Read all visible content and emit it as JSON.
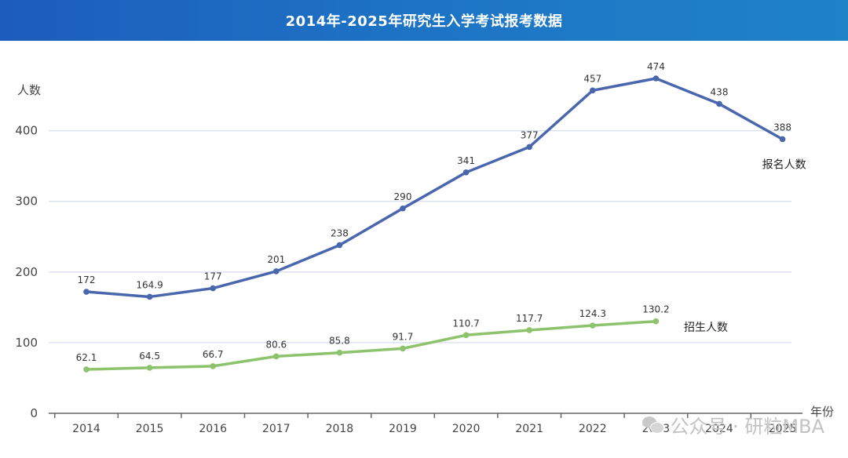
{
  "header": {
    "title": "2014年-2025年研究生入学考试报考数据"
  },
  "watermark": {
    "icon": "wechat-icon",
    "text": "公众号 · 研粒MBA"
  },
  "colors": {
    "title_bar": "#1d6cc2",
    "series_registration": "#4a67ae",
    "series_enrollment": "#8cc36c",
    "grid": "#dde3ee",
    "axis": "#666666"
  },
  "chart_data": {
    "type": "line",
    "title": "2014年-2025年研究生入学考试报考数据",
    "xlabel": "年份",
    "ylabel": "人数",
    "categories": [
      "2014",
      "2015",
      "2016",
      "2017",
      "2018",
      "2019",
      "2020",
      "2021",
      "2022",
      "2023",
      "2024",
      "2025"
    ],
    "ylim": [
      0,
      474
    ],
    "yticks": [
      0,
      100,
      200,
      300,
      400
    ],
    "grid": true,
    "legend": "inline-right",
    "series": [
      {
        "name": "报名人数",
        "values": [
          172,
          164.9,
          177,
          201,
          238,
          290,
          341,
          377,
          457,
          474,
          438,
          388
        ],
        "labels": [
          "172",
          "164.9",
          "177",
          "201",
          "238",
          "290",
          "341",
          "377",
          "457",
          "474",
          "438",
          "388"
        ]
      },
      {
        "name": "招生人数",
        "values": [
          62.1,
          64.5,
          66.7,
          80.6,
          85.8,
          91.7,
          110.7,
          117.7,
          124.3,
          130.2,
          null,
          null
        ],
        "labels": [
          "62.1",
          "64.5",
          "66.7",
          "80.6",
          "85.8",
          "91.7",
          "110.7",
          "117.7",
          "124.3",
          "130.2",
          "",
          ""
        ]
      }
    ]
  }
}
